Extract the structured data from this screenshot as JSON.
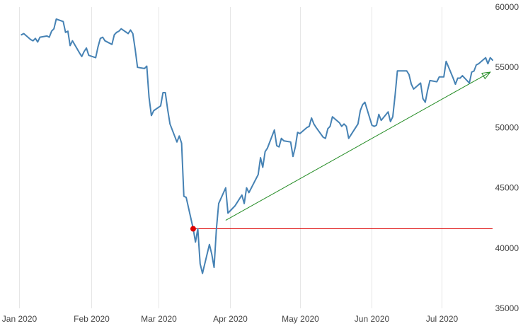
{
  "chart_data": {
    "type": "line",
    "title": "",
    "xlabel": "",
    "ylabel": "",
    "ylim": [
      35000,
      60000
    ],
    "yticks": [
      35000,
      40000,
      45000,
      50000,
      55000,
      60000
    ],
    "xlim": [
      "2020-01-01",
      "2020-07-23"
    ],
    "xtick_labels": [
      {
        "date": "2020-01-01",
        "label": "Jan 2020"
      },
      {
        "date": "2020-02-01",
        "label": "Feb 2020"
      },
      {
        "date": "2020-03-01",
        "label": "Mar 2020"
      },
      {
        "date": "2020-04-01",
        "label": "Apr 2020"
      },
      {
        "date": "2020-05-01",
        "label": "May 2020"
      },
      {
        "date": "2020-06-01",
        "label": "Jun 2020"
      },
      {
        "date": "2020-07-01",
        "label": "Jul 2020"
      }
    ],
    "grid": "vertical",
    "y_axis_position": "right",
    "series": [
      {
        "color": "#4682b4",
        "points": [
          [
            "2020-01-02",
            57700
          ],
          [
            "2020-01-03",
            57800
          ],
          [
            "2020-01-06",
            57300
          ],
          [
            "2020-01-07",
            57200
          ],
          [
            "2020-01-08",
            57400
          ],
          [
            "2020-01-09",
            57100
          ],
          [
            "2020-01-10",
            57500
          ],
          [
            "2020-01-13",
            57600
          ],
          [
            "2020-01-14",
            57500
          ],
          [
            "2020-01-15",
            58000
          ],
          [
            "2020-01-16",
            58200
          ],
          [
            "2020-01-17",
            59000
          ],
          [
            "2020-01-20",
            58800
          ],
          [
            "2020-01-21",
            57900
          ],
          [
            "2020-01-22",
            58000
          ],
          [
            "2020-01-23",
            56800
          ],
          [
            "2020-01-24",
            57200
          ],
          [
            "2020-01-27",
            56200
          ],
          [
            "2020-01-28",
            55900
          ],
          [
            "2020-01-29",
            56300
          ],
          [
            "2020-01-30",
            56600
          ],
          [
            "2020-01-31",
            56000
          ],
          [
            "2020-02-03",
            55800
          ],
          [
            "2020-02-04",
            56700
          ],
          [
            "2020-02-05",
            57400
          ],
          [
            "2020-02-06",
            57500
          ],
          [
            "2020-02-07",
            57200
          ],
          [
            "2020-02-10",
            56900
          ],
          [
            "2020-02-11",
            57700
          ],
          [
            "2020-02-12",
            57900
          ],
          [
            "2020-02-13",
            58000
          ],
          [
            "2020-02-14",
            58200
          ],
          [
            "2020-02-17",
            57800
          ],
          [
            "2020-02-18",
            58100
          ],
          [
            "2020-02-19",
            57800
          ],
          [
            "2020-02-20",
            56500
          ],
          [
            "2020-02-21",
            55000
          ],
          [
            "2020-02-24",
            54900
          ],
          [
            "2020-02-25",
            55100
          ],
          [
            "2020-02-26",
            52500
          ],
          [
            "2020-02-27",
            51000
          ],
          [
            "2020-02-28",
            51400
          ],
          [
            "2020-03-02",
            51800
          ],
          [
            "2020-03-03",
            52900
          ],
          [
            "2020-03-04",
            52900
          ],
          [
            "2020-03-05",
            51500
          ],
          [
            "2020-03-06",
            50300
          ],
          [
            "2020-03-09",
            48800
          ],
          [
            "2020-03-10",
            49300
          ],
          [
            "2020-03-11",
            48700
          ],
          [
            "2020-03-12",
            44300
          ],
          [
            "2020-03-13",
            44200
          ],
          [
            "2020-03-16",
            41600
          ],
          [
            "2020-03-17",
            40500
          ],
          [
            "2020-03-18",
            41600
          ],
          [
            "2020-03-19",
            38700
          ],
          [
            "2020-03-20",
            37900
          ],
          [
            "2020-03-23",
            40300
          ],
          [
            "2020-03-24",
            39500
          ],
          [
            "2020-03-25",
            38400
          ],
          [
            "2020-03-26",
            41600
          ],
          [
            "2020-03-27",
            43700
          ],
          [
            "2020-03-30",
            45000
          ],
          [
            "2020-03-31",
            42900
          ],
          [
            "2020-04-01",
            43100
          ],
          [
            "2020-04-03",
            43500
          ],
          [
            "2020-04-06",
            44400
          ],
          [
            "2020-04-07",
            43700
          ],
          [
            "2020-04-08",
            45000
          ],
          [
            "2020-04-09",
            44600
          ],
          [
            "2020-04-13",
            46100
          ],
          [
            "2020-04-14",
            47500
          ],
          [
            "2020-04-15",
            46700
          ],
          [
            "2020-04-16",
            48000
          ],
          [
            "2020-04-17",
            48300
          ],
          [
            "2020-04-20",
            49800
          ],
          [
            "2020-04-21",
            48500
          ],
          [
            "2020-04-22",
            48400
          ],
          [
            "2020-04-23",
            49100
          ],
          [
            "2020-04-24",
            48900
          ],
          [
            "2020-04-27",
            48800
          ],
          [
            "2020-04-28",
            47600
          ],
          [
            "2020-04-29",
            48400
          ],
          [
            "2020-04-30",
            49600
          ],
          [
            "2020-05-01",
            49500
          ],
          [
            "2020-05-04",
            50000
          ],
          [
            "2020-05-05",
            50100
          ],
          [
            "2020-05-06",
            50800
          ],
          [
            "2020-05-07",
            50300
          ],
          [
            "2020-05-08",
            50000
          ],
          [
            "2020-05-11",
            49200
          ],
          [
            "2020-05-12",
            49100
          ],
          [
            "2020-05-13",
            49900
          ],
          [
            "2020-05-14",
            50100
          ],
          [
            "2020-05-15",
            50900
          ],
          [
            "2020-05-18",
            50400
          ],
          [
            "2020-05-19",
            50100
          ],
          [
            "2020-05-20",
            50300
          ],
          [
            "2020-05-21",
            50100
          ],
          [
            "2020-05-22",
            49100
          ],
          [
            "2020-05-26",
            50300
          ],
          [
            "2020-05-27",
            51400
          ],
          [
            "2020-05-28",
            51900
          ],
          [
            "2020-05-29",
            52100
          ],
          [
            "2020-06-01",
            50200
          ],
          [
            "2020-06-02",
            50100
          ],
          [
            "2020-06-03",
            50200
          ],
          [
            "2020-06-04",
            51100
          ],
          [
            "2020-06-05",
            50600
          ],
          [
            "2020-06-08",
            51300
          ],
          [
            "2020-06-09",
            50500
          ],
          [
            "2020-06-10",
            50900
          ],
          [
            "2020-06-11",
            52700
          ],
          [
            "2020-06-12",
            54700
          ],
          [
            "2020-06-15",
            54700
          ],
          [
            "2020-06-16",
            54700
          ],
          [
            "2020-06-17",
            54400
          ],
          [
            "2020-06-18",
            53600
          ],
          [
            "2020-06-19",
            53200
          ],
          [
            "2020-06-22",
            53700
          ],
          [
            "2020-06-23",
            52400
          ],
          [
            "2020-06-24",
            52100
          ],
          [
            "2020-06-25",
            53100
          ],
          [
            "2020-06-26",
            53900
          ],
          [
            "2020-06-29",
            53800
          ],
          [
            "2020-06-30",
            54200
          ],
          [
            "2020-07-01",
            54200
          ],
          [
            "2020-07-02",
            54200
          ],
          [
            "2020-07-03",
            55500
          ],
          [
            "2020-07-06",
            54100
          ],
          [
            "2020-07-07",
            53600
          ],
          [
            "2020-07-08",
            54100
          ],
          [
            "2020-07-09",
            54100
          ],
          [
            "2020-07-10",
            54300
          ],
          [
            "2020-07-13",
            53700
          ],
          [
            "2020-07-14",
            54600
          ],
          [
            "2020-07-15",
            54700
          ],
          [
            "2020-07-16",
            55200
          ],
          [
            "2020-07-17",
            55300
          ],
          [
            "2020-07-20",
            55800
          ],
          [
            "2020-07-21",
            55300
          ],
          [
            "2020-07-22",
            55800
          ],
          [
            "2020-07-23",
            55600
          ]
        ]
      }
    ],
    "annotations": [
      {
        "kind": "horizontal-line",
        "color": "#dd0000",
        "y": 41600,
        "from": "2020-03-16",
        "to": "2020-07-23"
      },
      {
        "kind": "marker",
        "color": "#dd0000",
        "x": "2020-03-16",
        "y": 41600
      },
      {
        "kind": "arrow",
        "color": "#228b22",
        "from": [
          "2020-03-30",
          42300
        ],
        "to": [
          "2020-07-22",
          54600
        ]
      }
    ]
  }
}
